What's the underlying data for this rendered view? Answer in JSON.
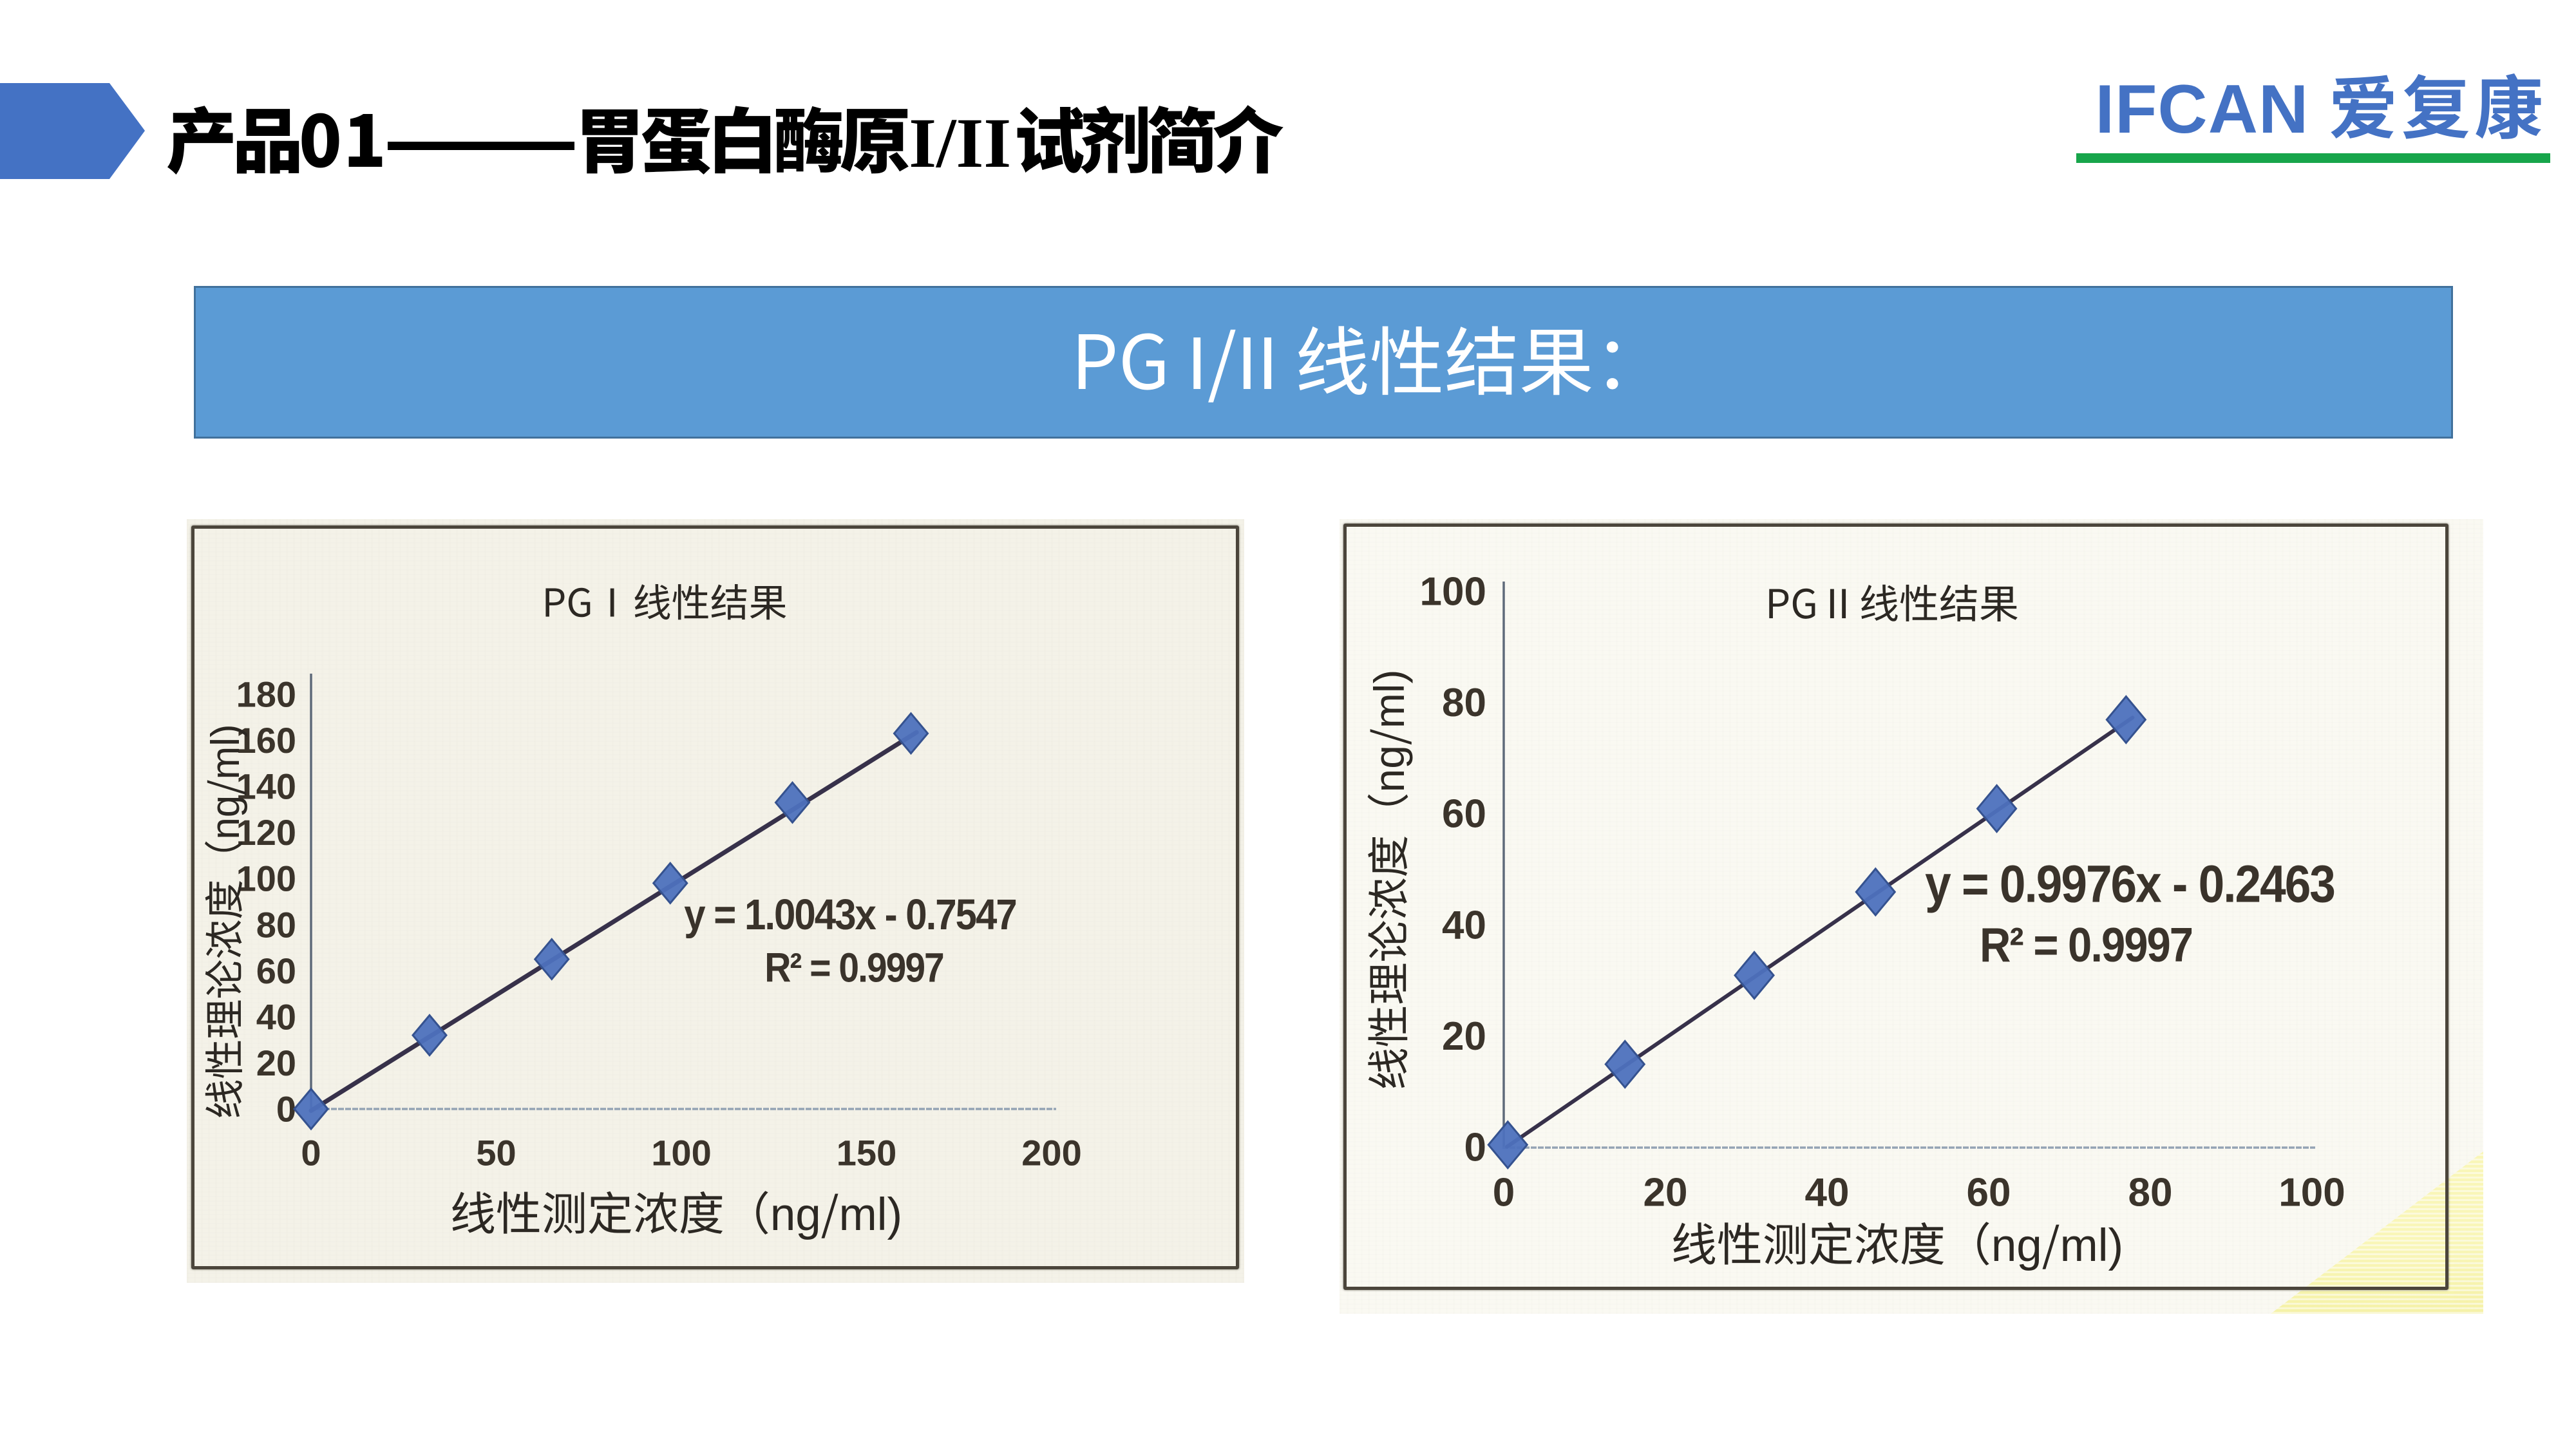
{
  "header": {
    "title": "产品01——胃蛋白酶原 I/II 试剂简介",
    "title_product": "产品",
    "title_number": "01",
    "title_dash": "——",
    "title_subject": "胃蛋白酶原 ",
    "title_roman": "I/II",
    "title_suffix": " 试剂简介",
    "arrow_color": "#4472c4"
  },
  "logo": {
    "latin": "IFCAN",
    "cjk": "爱复康",
    "text_color": "#4472c4",
    "underline_color": "#17a54b"
  },
  "banner": {
    "text": "PG I/II 线性结果：",
    "fill_color": "#5b9bd5",
    "border_color": "#41719c",
    "text_color": "#ffffff"
  },
  "chart_data": [
    {
      "type": "scatter",
      "title_latin": "PG",
      "title_roman": "Ⅰ",
      "title_cjk": "线性结果",
      "title": "PGⅠ线性结果",
      "xlabel": "线性测定浓度（ng/ml)",
      "ylabel": "线性理论浓度（ng/ml)",
      "equation": "y = 1.0043x - 0.7547",
      "r_squared": "R² = 0.9997",
      "x": [
        0,
        32,
        65,
        97,
        130,
        162
      ],
      "y": [
        0,
        32,
        65,
        98,
        133,
        163
      ],
      "xlim": [
        0,
        200
      ],
      "ylim": [
        0,
        180
      ],
      "xticks": [
        0,
        50,
        100,
        150,
        200
      ],
      "yticks": [
        0,
        20,
        40,
        60,
        80,
        100,
        120,
        140,
        160,
        180
      ],
      "trendline": {
        "slope": 1.0043,
        "intercept": -0.7547
      },
      "grid": false,
      "legend": null,
      "marker": "diamond",
      "marker_color": "#4d71bd",
      "line_color": "#37314a"
    },
    {
      "type": "scatter",
      "title_latin": "PG",
      "title_roman": "Ⅱ",
      "title_cjk": "线性结果",
      "title": "PGⅡ线性结果",
      "xlabel": "线性测定浓度（ng/ml)",
      "ylabel": "线性理论浓度（ng/ml)",
      "equation": "y = 0.9976x - 0.2463",
      "r_squared": "R² = 0.9997",
      "x": [
        0.5,
        15,
        31,
        46,
        61,
        77
      ],
      "y": [
        0.5,
        15,
        31,
        46,
        61,
        77
      ],
      "xlim": [
        0,
        100
      ],
      "ylim": [
        0,
        100
      ],
      "xticks": [
        0,
        20,
        40,
        60,
        80,
        100
      ],
      "yticks": [
        0,
        20,
        40,
        60,
        80,
        100
      ],
      "trendline": {
        "slope": 0.9976,
        "intercept": -0.2463
      },
      "grid": false,
      "legend": null,
      "marker": "diamond",
      "marker_color": "#4d71bd",
      "line_color": "#37314a"
    }
  ]
}
